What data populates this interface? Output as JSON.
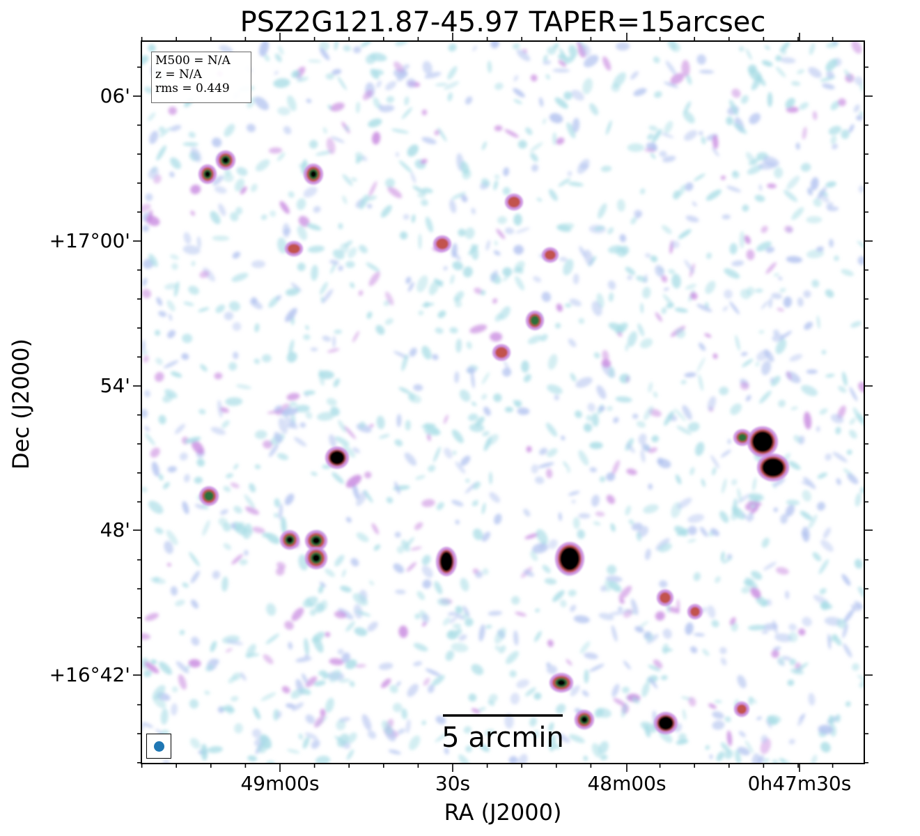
{
  "title": "PSZ2G121.87-45.97 TAPER=15arcsec",
  "xlabel": "RA (J2000)",
  "ylabel": "Dec (J2000)",
  "xticks": [
    "49m00s",
    "30s",
    "48m00s",
    "0h47m30s"
  ],
  "yticks": [
    "06'",
    "+17°00'",
    "54'",
    "48'",
    "+16°42'"
  ],
  "info": {
    "m500": "M500 = N/A",
    "z": "z = N/A",
    "rms": "rms = 0.449"
  },
  "scalebar": {
    "label": "5 arcmin"
  },
  "colors": {
    "faint_noise": "#a9dde6",
    "noise": "#b4c4f0",
    "medium": "#c98be0",
    "source_halo": "#c2524e",
    "source_mid": "#2f6e3a",
    "source_core": "#000000",
    "beam": "#1f77b4"
  }
}
